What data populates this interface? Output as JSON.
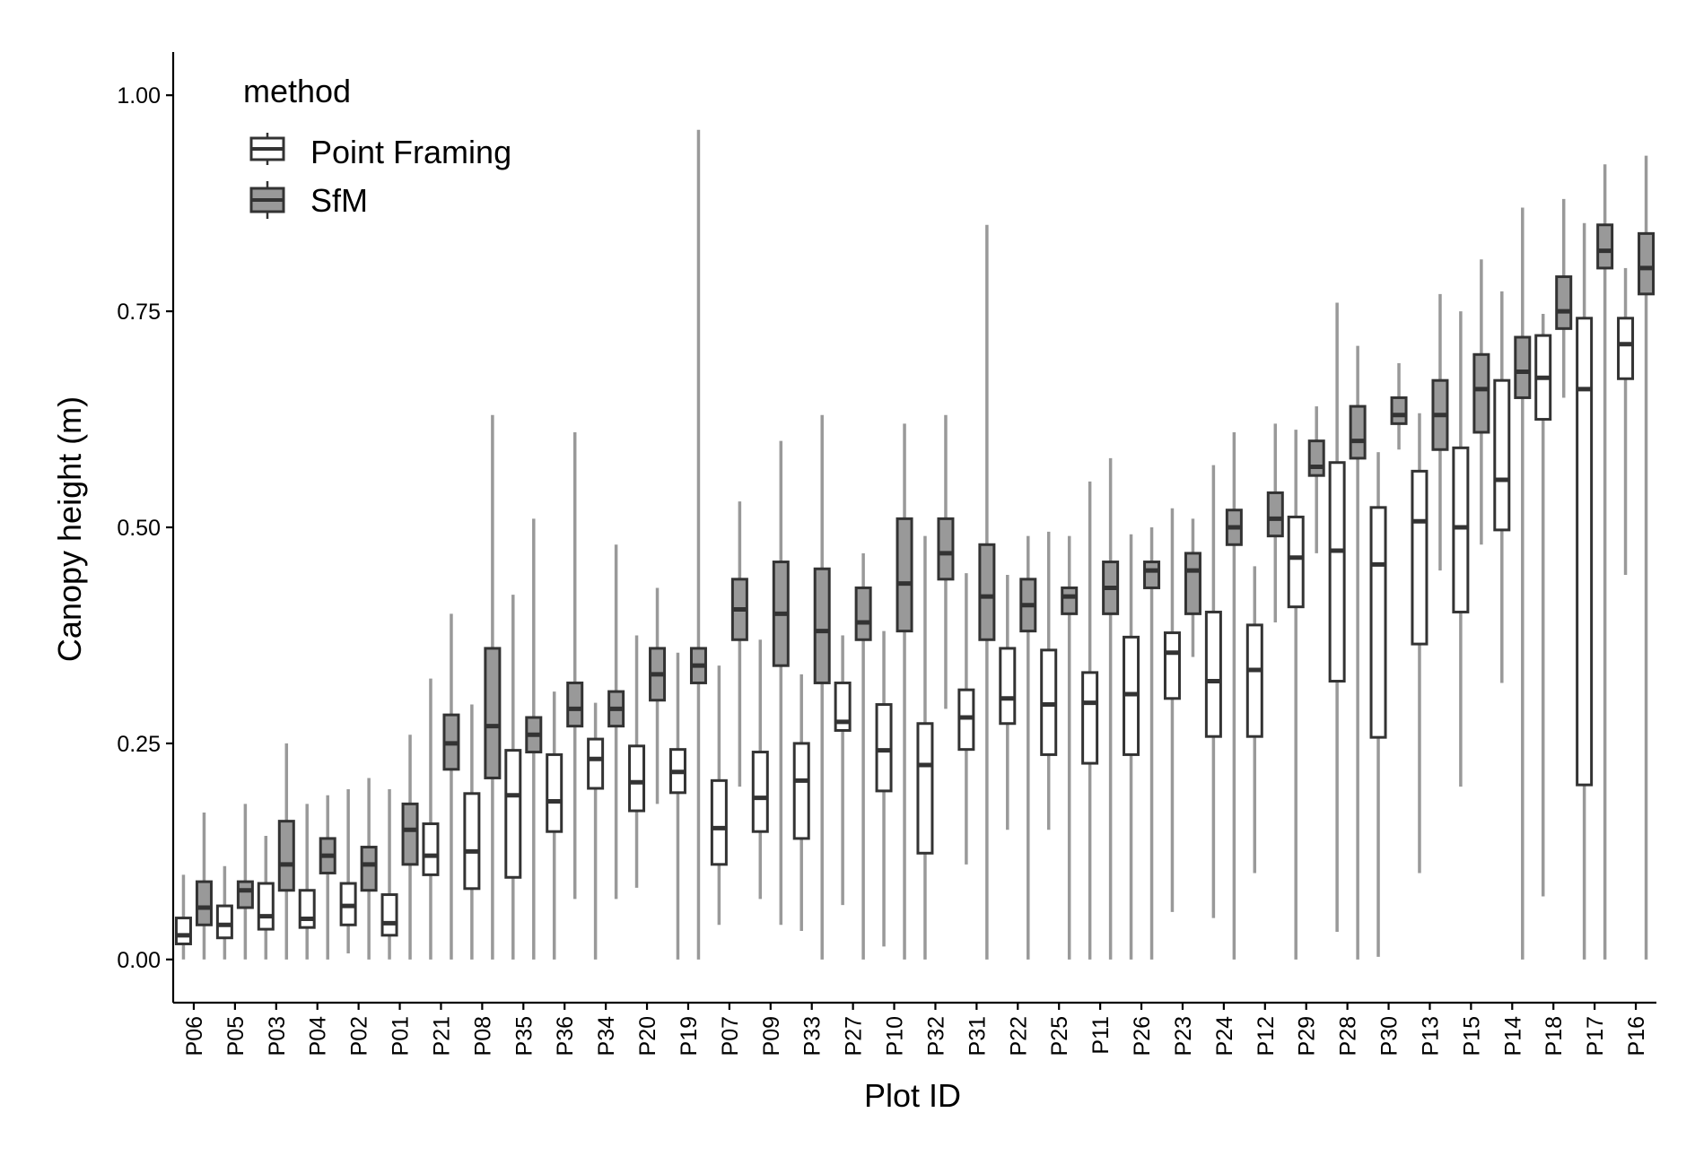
{
  "chart_data": {
    "type": "boxplot",
    "xlabel": "Plot ID",
    "ylabel": "Canopy height (m)",
    "ylim": [
      -0.05,
      1.05
    ],
    "y_ticks": [
      0.0,
      0.25,
      0.5,
      0.75,
      1.0
    ],
    "y_tick_labels": [
      "0.00",
      "0.25",
      "0.50",
      "0.75",
      "1.00"
    ],
    "grid": false,
    "legend": {
      "title": "method",
      "placement": "top-left",
      "entries": [
        {
          "name": "Point Framing",
          "fill": "#ffffff"
        },
        {
          "name": "SfM",
          "fill": "#999999"
        }
      ]
    },
    "colors": {
      "box_stroke": "#333333",
      "whisker": "#999999",
      "sfm_fill": "#999999",
      "pf_fill": "#ffffff"
    },
    "categories": [
      "P06",
      "P05",
      "P03",
      "P04",
      "P02",
      "P01",
      "P21",
      "P08",
      "P35",
      "P36",
      "P34",
      "P20",
      "P19",
      "P07",
      "P09",
      "P33",
      "P27",
      "P10",
      "P32",
      "P31",
      "P22",
      "P25",
      "P11",
      "P26",
      "P23",
      "P24",
      "P12",
      "P29",
      "P28",
      "P30",
      "P13",
      "P15",
      "P14",
      "P18",
      "P17",
      "P16"
    ],
    "series": [
      {
        "name": "Point Framing",
        "boxes": [
          {
            "min": 0.0,
            "q1": 0.018,
            "median": 0.028,
            "q3": 0.048,
            "max": 0.098
          },
          {
            "min": 0.0,
            "q1": 0.025,
            "median": 0.04,
            "q3": 0.062,
            "max": 0.108
          },
          {
            "min": 0.0,
            "q1": 0.035,
            "median": 0.05,
            "q3": 0.088,
            "max": 0.143
          },
          {
            "min": 0.0,
            "q1": 0.037,
            "median": 0.047,
            "q3": 0.08,
            "max": 0.18
          },
          {
            "min": 0.007,
            "q1": 0.04,
            "median": 0.062,
            "q3": 0.088,
            "max": 0.197
          },
          {
            "min": 0.0,
            "q1": 0.028,
            "median": 0.042,
            "q3": 0.075,
            "max": 0.197
          },
          {
            "min": 0.0,
            "q1": 0.098,
            "median": 0.12,
            "q3": 0.157,
            "max": 0.325
          },
          {
            "min": 0.0,
            "q1": 0.082,
            "median": 0.125,
            "q3": 0.192,
            "max": 0.295
          },
          {
            "min": 0.0,
            "q1": 0.095,
            "median": 0.19,
            "q3": 0.242,
            "max": 0.422
          },
          {
            "min": 0.0,
            "q1": 0.148,
            "median": 0.183,
            "q3": 0.237,
            "max": 0.31
          },
          {
            "min": 0.0,
            "q1": 0.198,
            "median": 0.232,
            "q3": 0.255,
            "max": 0.297
          },
          {
            "min": 0.083,
            "q1": 0.172,
            "median": 0.205,
            "q3": 0.247,
            "max": 0.375
          },
          {
            "min": 0.0,
            "q1": 0.193,
            "median": 0.217,
            "q3": 0.243,
            "max": 0.355
          },
          {
            "min": 0.04,
            "q1": 0.11,
            "median": 0.152,
            "q3": 0.207,
            "max": 0.34
          },
          {
            "min": 0.07,
            "q1": 0.148,
            "median": 0.187,
            "q3": 0.24,
            "max": 0.37
          },
          {
            "min": 0.033,
            "q1": 0.14,
            "median": 0.207,
            "q3": 0.25,
            "max": 0.33
          },
          {
            "min": 0.063,
            "q1": 0.265,
            "median": 0.275,
            "q3": 0.32,
            "max": 0.375
          },
          {
            "min": 0.015,
            "q1": 0.195,
            "median": 0.242,
            "q3": 0.295,
            "max": 0.38
          },
          {
            "min": 0.0,
            "q1": 0.123,
            "median": 0.225,
            "q3": 0.273,
            "max": 0.49
          },
          {
            "min": 0.11,
            "q1": 0.243,
            "median": 0.28,
            "q3": 0.312,
            "max": 0.447
          },
          {
            "min": 0.15,
            "q1": 0.273,
            "median": 0.302,
            "q3": 0.36,
            "max": 0.445
          },
          {
            "min": 0.15,
            "q1": 0.237,
            "median": 0.295,
            "q3": 0.358,
            "max": 0.495
          },
          {
            "min": 0.0,
            "q1": 0.227,
            "median": 0.297,
            "q3": 0.332,
            "max": 0.553
          },
          {
            "min": 0.0,
            "q1": 0.237,
            "median": 0.307,
            "q3": 0.373,
            "max": 0.492
          },
          {
            "min": 0.055,
            "q1": 0.302,
            "median": 0.355,
            "q3": 0.378,
            "max": 0.522
          },
          {
            "min": 0.048,
            "q1": 0.258,
            "median": 0.322,
            "q3": 0.402,
            "max": 0.572
          },
          {
            "min": 0.1,
            "q1": 0.258,
            "median": 0.335,
            "q3": 0.387,
            "max": 0.455
          },
          {
            "min": 0.0,
            "q1": 0.408,
            "median": 0.465,
            "q3": 0.512,
            "max": 0.613
          },
          {
            "min": 0.032,
            "q1": 0.322,
            "median": 0.473,
            "q3": 0.575,
            "max": 0.76
          },
          {
            "min": 0.003,
            "q1": 0.257,
            "median": 0.457,
            "q3": 0.523,
            "max": 0.587
          },
          {
            "min": 0.1,
            "q1": 0.365,
            "median": 0.507,
            "q3": 0.565,
            "max": 0.632
          },
          {
            "min": 0.2,
            "q1": 0.402,
            "median": 0.5,
            "q3": 0.592,
            "max": 0.75
          },
          {
            "min": 0.32,
            "q1": 0.497,
            "median": 0.555,
            "q3": 0.67,
            "max": 0.773
          },
          {
            "min": 0.073,
            "q1": 0.625,
            "median": 0.673,
            "q3": 0.722,
            "max": 0.747
          },
          {
            "min": 0.0,
            "q1": 0.202,
            "median": 0.66,
            "q3": 0.742,
            "max": 0.852
          },
          {
            "min": 0.445,
            "q1": 0.672,
            "median": 0.712,
            "q3": 0.742,
            "max": 0.8
          }
        ]
      },
      {
        "name": "SfM",
        "boxes": [
          {
            "min": 0.0,
            "q1": 0.04,
            "median": 0.06,
            "q3": 0.09,
            "max": 0.17
          },
          {
            "min": 0.0,
            "q1": 0.06,
            "median": 0.08,
            "q3": 0.09,
            "max": 0.18
          },
          {
            "min": 0.0,
            "q1": 0.08,
            "median": 0.11,
            "q3": 0.16,
            "max": 0.25
          },
          {
            "min": 0.0,
            "q1": 0.1,
            "median": 0.12,
            "q3": 0.14,
            "max": 0.19
          },
          {
            "min": 0.0,
            "q1": 0.08,
            "median": 0.11,
            "q3": 0.13,
            "max": 0.21
          },
          {
            "min": 0.0,
            "q1": 0.11,
            "median": 0.15,
            "q3": 0.18,
            "max": 0.26
          },
          {
            "min": 0.0,
            "q1": 0.22,
            "median": 0.25,
            "q3": 0.283,
            "max": 0.4
          },
          {
            "min": 0.0,
            "q1": 0.21,
            "median": 0.27,
            "q3": 0.36,
            "max": 0.63
          },
          {
            "min": 0.0,
            "q1": 0.24,
            "median": 0.26,
            "q3": 0.28,
            "max": 0.51
          },
          {
            "min": 0.07,
            "q1": 0.27,
            "median": 0.29,
            "q3": 0.32,
            "max": 0.61
          },
          {
            "min": 0.07,
            "q1": 0.27,
            "median": 0.29,
            "q3": 0.31,
            "max": 0.48
          },
          {
            "min": 0.18,
            "q1": 0.3,
            "median": 0.33,
            "q3": 0.36,
            "max": 0.43
          },
          {
            "min": 0.0,
            "q1": 0.32,
            "median": 0.34,
            "q3": 0.36,
            "max": 0.96
          },
          {
            "min": 0.2,
            "q1": 0.37,
            "median": 0.405,
            "q3": 0.44,
            "max": 0.53
          },
          {
            "min": 0.04,
            "q1": 0.34,
            "median": 0.4,
            "q3": 0.46,
            "max": 0.6
          },
          {
            "min": 0.0,
            "q1": 0.32,
            "median": 0.38,
            "q3": 0.452,
            "max": 0.63
          },
          {
            "min": 0.0,
            "q1": 0.37,
            "median": 0.39,
            "q3": 0.43,
            "max": 0.47
          },
          {
            "min": 0.0,
            "q1": 0.38,
            "median": 0.435,
            "q3": 0.51,
            "max": 0.62
          },
          {
            "min": 0.29,
            "q1": 0.44,
            "median": 0.47,
            "q3": 0.51,
            "max": 0.63
          },
          {
            "min": 0.0,
            "q1": 0.37,
            "median": 0.42,
            "q3": 0.48,
            "max": 0.85
          },
          {
            "min": 0.0,
            "q1": 0.38,
            "median": 0.41,
            "q3": 0.44,
            "max": 0.49
          },
          {
            "min": 0.0,
            "q1": 0.4,
            "median": 0.42,
            "q3": 0.43,
            "max": 0.49
          },
          {
            "min": 0.0,
            "q1": 0.4,
            "median": 0.43,
            "q3": 0.46,
            "max": 0.58
          },
          {
            "min": 0.0,
            "q1": 0.43,
            "median": 0.45,
            "q3": 0.46,
            "max": 0.5
          },
          {
            "min": 0.35,
            "q1": 0.4,
            "median": 0.45,
            "q3": 0.47,
            "max": 0.51
          },
          {
            "min": 0.0,
            "q1": 0.48,
            "median": 0.5,
            "q3": 0.52,
            "max": 0.61
          },
          {
            "min": 0.39,
            "q1": 0.49,
            "median": 0.51,
            "q3": 0.54,
            "max": 0.62
          },
          {
            "min": 0.47,
            "q1": 0.56,
            "median": 0.57,
            "q3": 0.6,
            "max": 0.64
          },
          {
            "min": 0.0,
            "q1": 0.58,
            "median": 0.6,
            "q3": 0.64,
            "max": 0.71
          },
          {
            "min": 0.59,
            "q1": 0.62,
            "median": 0.63,
            "q3": 0.65,
            "max": 0.69
          },
          {
            "min": 0.45,
            "q1": 0.59,
            "median": 0.63,
            "q3": 0.67,
            "max": 0.77
          },
          {
            "min": 0.48,
            "q1": 0.61,
            "median": 0.66,
            "q3": 0.7,
            "max": 0.81
          },
          {
            "min": 0.0,
            "q1": 0.65,
            "median": 0.68,
            "q3": 0.72,
            "max": 0.87
          },
          {
            "min": 0.65,
            "q1": 0.73,
            "median": 0.75,
            "q3": 0.79,
            "max": 0.88
          },
          {
            "min": 0.0,
            "q1": 0.8,
            "median": 0.82,
            "q3": 0.85,
            "max": 0.92
          },
          {
            "min": 0.0,
            "q1": 0.77,
            "median": 0.8,
            "q3": 0.84,
            "max": 0.93
          }
        ]
      }
    ]
  }
}
